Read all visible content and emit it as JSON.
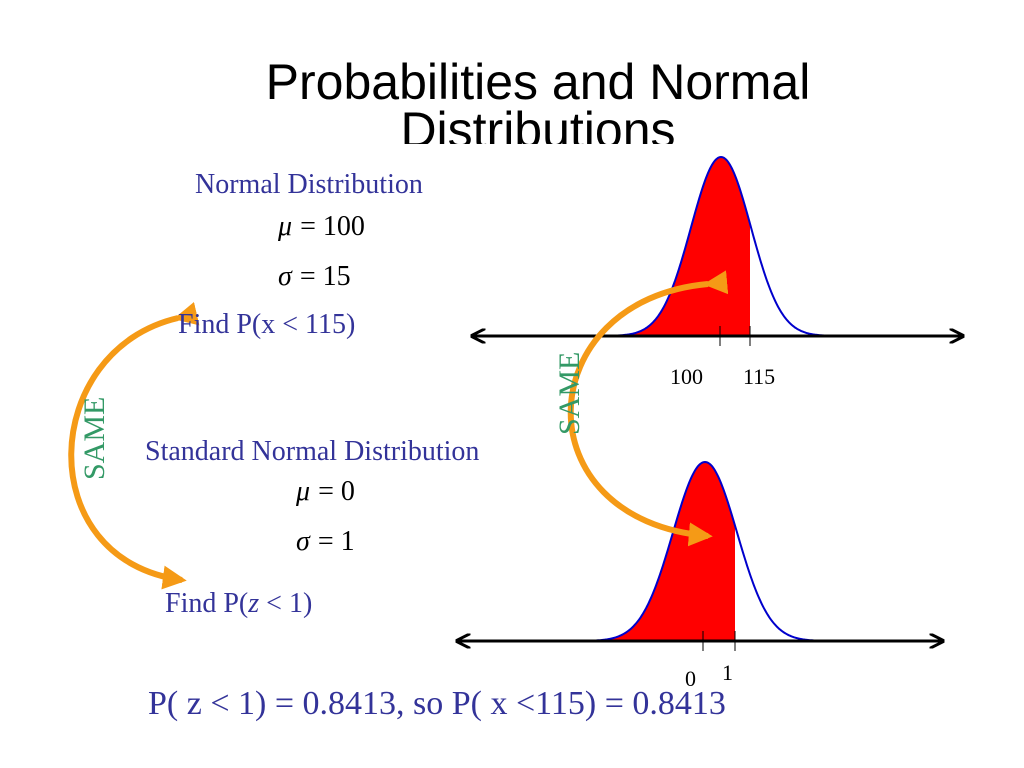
{
  "title": {
    "lines": [
      "Probabilities and Normal",
      "Distributions"
    ]
  },
  "normal": {
    "heading": "Normal Distribution",
    "mu": {
      "symbol": "μ",
      "rest": "= 100"
    },
    "sigma": {
      "symbol": "σ",
      "rest": "= 15"
    },
    "find": "Find P(x < 115)",
    "axis_labels": [
      "100",
      "115"
    ]
  },
  "standard": {
    "heading": "Standard Normal Distribution",
    "mu": {
      "symbol": "μ",
      "rest": "= 0"
    },
    "sigma": {
      "symbol": "σ",
      "rest": "= 1"
    },
    "find": {
      "before": "Find P(",
      "variable": "z",
      "after": " < 1)"
    },
    "axis_labels": [
      "0",
      "1"
    ]
  },
  "same_labels": [
    "SAME",
    "SAME"
  ],
  "conclusion": "P( z < 1) = 0.8413, so P( x <115) = 0.8413"
}
